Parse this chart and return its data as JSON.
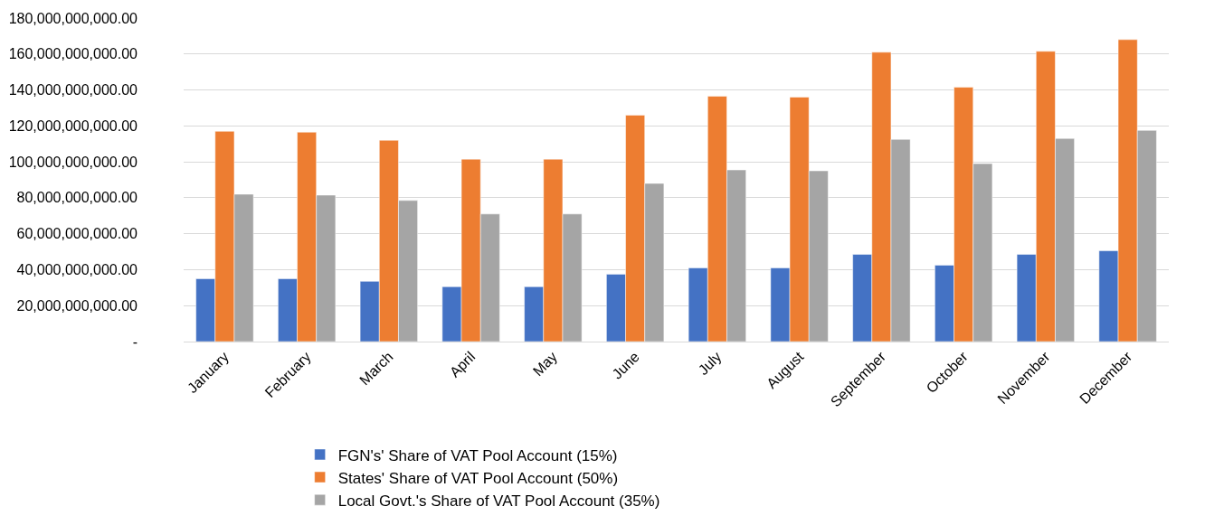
{
  "chart_data": {
    "type": "bar",
    "categories": [
      "January",
      "February",
      "March",
      "April",
      "May",
      "June",
      "July",
      "August",
      "September",
      "October",
      "November",
      "December"
    ],
    "series": [
      {
        "name": "FGN's' Share of VAT Pool Account (15%)",
        "color": "#4472c4",
        "values": [
          35000000000,
          35000000000,
          33500000000,
          30500000000,
          30500000000,
          37500000000,
          41000000000,
          41000000000,
          48500000000,
          42500000000,
          48500000000,
          50500000000
        ]
      },
      {
        "name": "States' Share of VAT Pool Account (50%)",
        "color": "#ed7d31",
        "values": [
          117000000000,
          116500000000,
          112000000000,
          101500000000,
          101500000000,
          126000000000,
          136500000000,
          136000000000,
          161000000000,
          141500000000,
          161500000000,
          168000000000
        ]
      },
      {
        "name": "Local Govt.'s Share of VAT Pool Account (35%)",
        "color": "#a5a5a5",
        "values": [
          82000000000,
          81500000000,
          78500000000,
          71000000000,
          71000000000,
          88000000000,
          95500000000,
          95000000000,
          112500000000,
          99000000000,
          113000000000,
          117500000000
        ]
      }
    ],
    "ylim": [
      0,
      180000000000
    ],
    "yticks": [
      {
        "value": 0,
        "label": "-"
      },
      {
        "value": 20000000000,
        "label": "20,000,000,000.00"
      },
      {
        "value": 40000000000,
        "label": "40,000,000,000.00"
      },
      {
        "value": 60000000000,
        "label": "60,000,000,000.00"
      },
      {
        "value": 80000000000,
        "label": "80,000,000,000.00"
      },
      {
        "value": 100000000000,
        "label": "100,000,000,000.00"
      },
      {
        "value": 120000000000,
        "label": "120,000,000,000.00"
      },
      {
        "value": 140000000000,
        "label": "140,000,000,000.00"
      },
      {
        "value": 160000000000,
        "label": "160,000,000,000.00"
      },
      {
        "value": 180000000000,
        "label": "180,000,000,000.00"
      }
    ],
    "grid": "y",
    "legend": "bottom"
  }
}
